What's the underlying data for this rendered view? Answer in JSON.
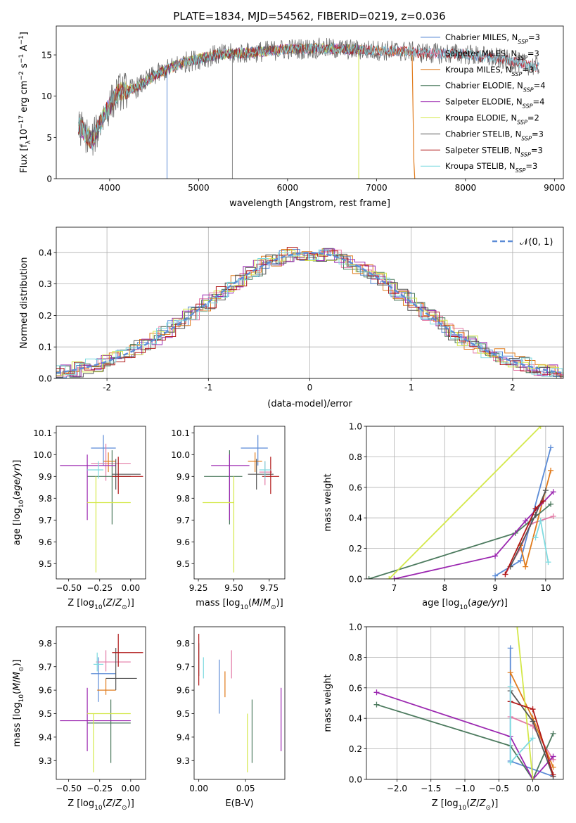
{
  "figure_title": "PLATE=1834, MJD=54562, FIBERID=0219, z=0.036",
  "colors": {
    "Chabrier MILES": "#5b8bd6",
    "Salpeter MILES": "#e37aa6",
    "Kroupa MILES": "#e07b1c",
    "Chabrier ELODIE": "#4c7a5e",
    "Salpeter ELODIE": "#9b27b0",
    "Kroupa ELODIE": "#d4e84a",
    "Chabrier STELIB": "#555555",
    "Salpeter STELIB": "#b01818",
    "Kroupa STELIB": "#7fdbe0"
  },
  "chart_data": [
    {
      "id": "spectrum",
      "type": "line",
      "title": "PLATE=1834, MJD=54562, FIBERID=0219, z=0.036",
      "xlabel": "wavelength [Angstrom, rest frame]",
      "ylabel": "Flux [f_λ 10^-17 erg cm^-2 s^-1 A^-1]",
      "xlim": [
        3400,
        9100
      ],
      "ylim": [
        0,
        18.5
      ],
      "xticks": [
        4000,
        5000,
        6000,
        7000,
        8000,
        9000
      ],
      "yticks": [
        0,
        5,
        10,
        15
      ],
      "grid": false,
      "legend_position": "top-right",
      "series": [
        {
          "name": "Chabrier MILES, N_SSP=3",
          "label_main": "Chabrier MILES, N",
          "label_sub": "SSP",
          "label_tail": "=3",
          "range": [
            3650,
            8830
          ]
        },
        {
          "name": "Salpeter MILES, N_SSP=3",
          "label_main": "Salpeter MILES, N",
          "label_sub": "SSP",
          "label_tail": "=3",
          "range": [
            3650,
            8830
          ]
        },
        {
          "name": "Kroupa MILES, N_SSP=3",
          "label_main": "Kroupa MILES, N",
          "label_sub": "SSP",
          "label_tail": "=3",
          "range": [
            3650,
            7420
          ]
        },
        {
          "name": "Chabrier ELODIE, N_SSP=4",
          "label_main": "Chabrier ELODIE, N",
          "label_sub": "SSP",
          "label_tail": "=4",
          "range": [
            3650,
            6800
          ]
        },
        {
          "name": "Salpeter ELODIE, N_SSP=4",
          "label_main": "Salpeter ELODIE, N",
          "label_sub": "SSP",
          "label_tail": "=4",
          "range": [
            3650,
            6800
          ]
        },
        {
          "name": "Kroupa ELODIE, N_SSP=2",
          "label_main": "Kroupa ELODIE, N",
          "label_sub": "SSP",
          "label_tail": "=2",
          "range": [
            3650,
            6800
          ]
        },
        {
          "name": "Chabrier STELIB, N_SSP=3",
          "label_main": "Chabrier STELIB, N",
          "label_sub": "SSP",
          "label_tail": "=3",
          "range": [
            3650,
            8830
          ]
        },
        {
          "name": "Salpeter STELIB, N_SSP=3",
          "label_main": "Salpeter STELIB, N",
          "label_sub": "SSP",
          "label_tail": "=3",
          "range": [
            3650,
            8830
          ]
        },
        {
          "name": "Kroupa STELIB, N_SSP=3",
          "label_main": "Kroupa STELIB, N",
          "label_sub": "SSP",
          "label_tail": "=3",
          "range": [
            3650,
            8830
          ]
        }
      ],
      "continuum_points": [
        [
          3650,
          6.5
        ],
        [
          3800,
          4.5
        ],
        [
          3950,
          8
        ],
        [
          4100,
          10.5
        ],
        [
          4300,
          11
        ],
        [
          4500,
          12.5
        ],
        [
          4800,
          14
        ],
        [
          5200,
          15
        ],
        [
          5600,
          15.3
        ],
        [
          6000,
          15.7
        ],
        [
          6400,
          15.8
        ],
        [
          6800,
          15.6
        ],
        [
          7200,
          15.5
        ],
        [
          7600,
          15.2
        ],
        [
          8000,
          15.1
        ],
        [
          8400,
          14.5
        ],
        [
          8830,
          13.5
        ]
      ],
      "absorption_lines": [
        {
          "wavelength": 4645,
          "depth_to": 0
        },
        {
          "wavelength": 5380,
          "depth_to": 0
        },
        {
          "wavelength": 6800,
          "depth_to": 0
        }
      ]
    },
    {
      "id": "residual-histogram",
      "type": "histogram",
      "xlabel": "(data-model)/error",
      "ylabel": "Normed distribution",
      "xlim": [
        -2.5,
        2.5
      ],
      "ylim": [
        0,
        0.48
      ],
      "xticks": [
        -2,
        -1,
        0,
        1,
        2
      ],
      "yticks": [
        0.0,
        0.1,
        0.2,
        0.3,
        0.4
      ],
      "grid": true,
      "legend_position": "top-right",
      "reference_curve": {
        "name": "N(0,1)",
        "mean": 0,
        "sigma": 1
      }
    },
    {
      "id": "age-vs-Z",
      "type": "scatter",
      "xlabel": "Z [log10(Z/Z⊙)]",
      "ylabel": "age [log10(age/yr)]",
      "xlim": [
        -0.6,
        0.12
      ],
      "ylim": [
        9.43,
        10.13
      ],
      "xticks": [
        -0.5,
        -0.25,
        0.0
      ],
      "xticklabels": [
        "−0.50",
        "−0.25",
        "0.00"
      ],
      "yticks": [
        9.5,
        9.6,
        9.7,
        9.8,
        9.9,
        10.0,
        10.1
      ],
      "grid": false,
      "points": [
        {
          "model": "Chabrier MILES",
          "x": -0.22,
          "y": 10.03,
          "xlo": -0.32,
          "xhi": -0.12,
          "ylo": 9.95,
          "yhi": 10.09
        },
        {
          "model": "Salpeter MILES",
          "x": -0.2,
          "y": 9.96,
          "xlo": -0.32,
          "xhi": 0.0,
          "ylo": 9.88,
          "yhi": 10.05
        },
        {
          "model": "Kroupa MILES",
          "x": -0.18,
          "y": 9.97,
          "xlo": -0.22,
          "xhi": -0.12,
          "ylo": 9.92,
          "yhi": 10.01
        },
        {
          "model": "Chabrier ELODIE",
          "x": -0.15,
          "y": 9.9,
          "xlo": -0.35,
          "xhi": 0.0,
          "ylo": 9.68,
          "yhi": 10.02
        },
        {
          "model": "Salpeter ELODIE",
          "x": -0.35,
          "y": 9.95,
          "xlo": -0.57,
          "xhi": -0.12,
          "ylo": 9.7,
          "yhi": 10.0
        },
        {
          "model": "Kroupa ELODIE",
          "x": -0.28,
          "y": 9.78,
          "xlo": -0.35,
          "xhi": 0.0,
          "ylo": 9.46,
          "yhi": 9.9
        },
        {
          "model": "Chabrier STELIB",
          "x": -0.12,
          "y": 9.91,
          "xlo": -0.15,
          "xhi": 0.08,
          "ylo": 9.84,
          "yhi": 9.98
        },
        {
          "model": "Salpeter STELIB",
          "x": -0.1,
          "y": 9.9,
          "xlo": -0.15,
          "xhi": 0.1,
          "ylo": 9.82,
          "yhi": 9.99
        },
        {
          "model": "Kroupa STELIB",
          "x": -0.26,
          "y": 9.93,
          "xlo": -0.35,
          "xhi": -0.22,
          "ylo": 9.89,
          "yhi": 9.97
        }
      ]
    },
    {
      "id": "age-vs-mass",
      "type": "scatter",
      "xlabel": "mass [log10(M/M⊙)]",
      "ylabel": "",
      "xlim": [
        9.22,
        9.86
      ],
      "ylim": [
        9.43,
        10.13
      ],
      "xticks": [
        9.25,
        9.5,
        9.75
      ],
      "xticklabels": [
        "9.25",
        "9.50",
        "9.75"
      ],
      "yticks": [
        9.5,
        9.6,
        9.7,
        9.8,
        9.9,
        10.0,
        10.1
      ],
      "grid": false,
      "points": [
        {
          "model": "Chabrier MILES",
          "x": 9.67,
          "y": 10.03,
          "xlo": 9.55,
          "xhi": 9.74,
          "ylo": 9.95,
          "yhi": 10.09
        },
        {
          "model": "Salpeter MILES",
          "x": 9.72,
          "y": 9.92,
          "xlo": 9.68,
          "xhi": 9.77,
          "ylo": 9.86,
          "yhi": 9.97
        },
        {
          "model": "Kroupa MILES",
          "x": 9.65,
          "y": 9.97,
          "xlo": 9.6,
          "xhi": 9.7,
          "ylo": 9.92,
          "yhi": 10.01
        },
        {
          "model": "Chabrier ELODIE",
          "x": 9.47,
          "y": 9.9,
          "xlo": 9.29,
          "xhi": 9.56,
          "ylo": 9.68,
          "yhi": 10.02
        },
        {
          "model": "Salpeter ELODIE",
          "x": 9.47,
          "y": 9.95,
          "xlo": 9.34,
          "xhi": 9.61,
          "ylo": 9.7,
          "yhi": 10.0
        },
        {
          "model": "Kroupa ELODIE",
          "x": 9.5,
          "y": 9.78,
          "xlo": 9.28,
          "xhi": 9.5,
          "ylo": 9.46,
          "yhi": 9.9
        },
        {
          "model": "Chabrier STELIB",
          "x": 9.66,
          "y": 9.91,
          "xlo": 9.6,
          "xhi": 9.78,
          "ylo": 9.84,
          "yhi": 9.98
        },
        {
          "model": "Salpeter STELIB",
          "x": 9.76,
          "y": 9.9,
          "xlo": 9.7,
          "xhi": 9.82,
          "ylo": 9.82,
          "yhi": 9.99
        },
        {
          "model": "Kroupa STELIB",
          "x": 9.72,
          "y": 9.93,
          "xlo": 9.68,
          "xhi": 9.76,
          "ylo": 9.89,
          "yhi": 9.97
        }
      ]
    },
    {
      "id": "mass-weight-vs-age",
      "type": "line",
      "xlabel": "age [log10(age/yr)]",
      "ylabel": "mass weight",
      "xlim": [
        6.45,
        10.35
      ],
      "ylim": [
        0,
        1
      ],
      "xticks": [
        7,
        8,
        9,
        10
      ],
      "yticks": [
        0.0,
        0.2,
        0.4,
        0.6,
        0.8,
        1.0
      ],
      "grid": true,
      "series": [
        {
          "model": "Chabrier MILES",
          "x": [
            9.0,
            9.5,
            10.1
          ],
          "y": [
            0.02,
            0.12,
            0.86
          ]
        },
        {
          "model": "Salpeter MILES",
          "x": [
            9.2,
            9.5,
            9.7,
            10.15
          ],
          "y": [
            0.03,
            0.2,
            0.36,
            0.41
          ]
        },
        {
          "model": "Kroupa MILES",
          "x": [
            9.5,
            9.6,
            10.1
          ],
          "y": [
            0.22,
            0.08,
            0.71
          ]
        },
        {
          "model": "Chabrier ELODIE",
          "x": [
            6.5,
            9.4,
            10.1
          ],
          "y": [
            0.0,
            0.3,
            0.49
          ]
        },
        {
          "model": "Salpeter ELODIE",
          "x": [
            7.0,
            9.0,
            9.6,
            10.15
          ],
          "y": [
            0.0,
            0.15,
            0.38,
            0.57
          ]
        },
        {
          "model": "Kroupa ELODIE",
          "x": [
            6.9,
            9.9
          ],
          "y": [
            0.0,
            1.0
          ]
        },
        {
          "model": "Chabrier STELIB",
          "x": [
            9.3,
            9.8,
            10.0
          ],
          "y": [
            0.08,
            0.42,
            0.58
          ]
        },
        {
          "model": "Salpeter STELIB",
          "x": [
            9.2,
            9.8,
            9.95
          ],
          "y": [
            0.03,
            0.46,
            0.51
          ]
        },
        {
          "model": "Kroupa STELIB",
          "x": [
            9.8,
            9.9,
            10.05
          ],
          "y": [
            0.27,
            0.38,
            0.11
          ]
        }
      ]
    },
    {
      "id": "mass-vs-Z",
      "type": "scatter",
      "xlabel": "Z [log10(Z/Z⊙)]",
      "ylabel": "mass [log10(M/M⊙)]",
      "xlim": [
        -0.6,
        0.12
      ],
      "ylim": [
        9.22,
        9.87
      ],
      "xticks": [
        -0.5,
        -0.25,
        0.0
      ],
      "xticklabels": [
        "−0.50",
        "−0.25",
        "0.00"
      ],
      "yticks": [
        9.3,
        9.4,
        9.5,
        9.6,
        9.7,
        9.8
      ],
      "grid": false,
      "points": [
        {
          "model": "Chabrier MILES",
          "x": -0.26,
          "y": 9.67,
          "xlo": -0.32,
          "xhi": -0.12,
          "ylo": 9.55,
          "yhi": 9.74
        },
        {
          "model": "Salpeter MILES",
          "x": -0.2,
          "y": 9.72,
          "xlo": -0.28,
          "xhi": 0.0,
          "ylo": 9.68,
          "yhi": 9.77
        },
        {
          "model": "Kroupa MILES",
          "x": -0.2,
          "y": 9.6,
          "xlo": -0.27,
          "xhi": -0.12,
          "ylo": 9.58,
          "yhi": 9.65
        },
        {
          "model": "Chabrier ELODIE",
          "x": -0.16,
          "y": 9.46,
          "xlo": -0.35,
          "xhi": 0.0,
          "ylo": 9.29,
          "yhi": 9.56
        },
        {
          "model": "Salpeter ELODIE",
          "x": -0.35,
          "y": 9.47,
          "xlo": -0.57,
          "xhi": 0.0,
          "ylo": 9.34,
          "yhi": 9.61
        },
        {
          "model": "Kroupa ELODIE",
          "x": -0.3,
          "y": 9.5,
          "xlo": -0.35,
          "xhi": 0.0,
          "ylo": 9.25,
          "yhi": 9.5
        },
        {
          "model": "Chabrier STELIB",
          "x": -0.12,
          "y": 9.65,
          "xlo": -0.2,
          "xhi": 0.05,
          "ylo": 9.6,
          "yhi": 9.78
        },
        {
          "model": "Salpeter STELIB",
          "x": -0.1,
          "y": 9.76,
          "xlo": -0.15,
          "xhi": 0.1,
          "ylo": 9.7,
          "yhi": 9.84
        },
        {
          "model": "Kroupa STELIB",
          "x": -0.27,
          "y": 9.71,
          "xlo": -0.3,
          "xhi": -0.22,
          "ylo": 9.68,
          "yhi": 9.76
        }
      ]
    },
    {
      "id": "mass-vs-ebv",
      "type": "scatter",
      "xlabel": "E(B-V)",
      "ylabel": "",
      "xlim": [
        -0.005,
        0.092
      ],
      "ylim": [
        9.22,
        9.87
      ],
      "xticks": [
        0.0,
        0.05
      ],
      "xticklabels": [
        "0.00",
        "0.05"
      ],
      "yticks": [
        9.3,
        9.4,
        9.5,
        9.6,
        9.7,
        9.8
      ],
      "grid": false,
      "points": [
        {
          "model": "Chabrier MILES",
          "x": 0.022,
          "ylo": 9.5,
          "yhi": 9.73
        },
        {
          "model": "Salpeter MILES",
          "x": 0.035,
          "ylo": 9.65,
          "yhi": 9.77
        },
        {
          "model": "Kroupa MILES",
          "x": 0.028,
          "ylo": 9.57,
          "yhi": 9.68
        },
        {
          "model": "Chabrier ELODIE",
          "x": 0.057,
          "ylo": 9.29,
          "yhi": 9.56
        },
        {
          "model": "Salpeter ELODIE",
          "x": 0.088,
          "ylo": 9.34,
          "yhi": 9.61
        },
        {
          "model": "Kroupa ELODIE",
          "x": 0.052,
          "ylo": 9.25,
          "yhi": 9.5
        },
        {
          "model": "Chabrier STELIB",
          "x": 0.0,
          "ylo": 9.66,
          "yhi": 9.8
        },
        {
          "model": "Salpeter STELIB",
          "x": 0.0,
          "ylo": 9.62,
          "yhi": 9.84
        },
        {
          "model": "Kroupa STELIB",
          "x": 0.005,
          "ylo": 9.65,
          "yhi": 9.74
        }
      ]
    },
    {
      "id": "mass-weight-vs-Z",
      "type": "line",
      "xlabel": "Z [log10(Z/Z⊙)]",
      "ylabel": "mass weight",
      "xlim": [
        -2.45,
        0.45
      ],
      "ylim": [
        0,
        1
      ],
      "xticks": [
        -2.0,
        -1.5,
        -1.0,
        -0.5,
        0.0
      ],
      "xticklabels": [
        "−2.0",
        "−1.5",
        "−1.0",
        "−0.5",
        "0.0"
      ],
      "yticks": [
        0.0,
        0.2,
        0.4,
        0.6,
        0.8,
        1.0
      ],
      "grid": true,
      "series": [
        {
          "model": "Chabrier MILES",
          "x": [
            -0.33,
            -0.33,
            0.3
          ],
          "y": [
            0.86,
            0.12,
            0.02
          ]
        },
        {
          "model": "Salpeter MILES",
          "x": [
            -0.33,
            0.0,
            0.3
          ],
          "y": [
            0.41,
            0.35,
            0.13
          ]
        },
        {
          "model": "Kroupa MILES",
          "x": [
            -0.33,
            0.0,
            0.3
          ],
          "y": [
            0.7,
            0.4,
            0.08
          ]
        },
        {
          "model": "Chabrier ELODIE",
          "x": [
            -2.3,
            -0.33,
            0.0,
            0.3
          ],
          "y": [
            0.49,
            0.22,
            0.0,
            0.3
          ]
        },
        {
          "model": "Salpeter ELODIE",
          "x": [
            -2.3,
            -0.33,
            0.0,
            0.3
          ],
          "y": [
            0.57,
            0.28,
            0.0,
            0.15
          ]
        },
        {
          "model": "Kroupa ELODIE",
          "x": [
            -0.23,
            0.0
          ],
          "y": [
            1.0,
            0.0
          ]
        },
        {
          "model": "Chabrier STELIB",
          "x": [
            -0.33,
            0.0,
            0.3
          ],
          "y": [
            0.58,
            0.38,
            0.02
          ]
        },
        {
          "model": "Salpeter STELIB",
          "x": [
            -0.33,
            0.0,
            0.3
          ],
          "y": [
            0.51,
            0.46,
            0.03
          ]
        },
        {
          "model": "Kroupa STELIB",
          "x": [
            -0.33,
            -0.33,
            0.0
          ],
          "y": [
            0.61,
            0.11,
            0.27
          ]
        }
      ]
    }
  ],
  "legend_reference_label": "𝒩(0, 1)"
}
